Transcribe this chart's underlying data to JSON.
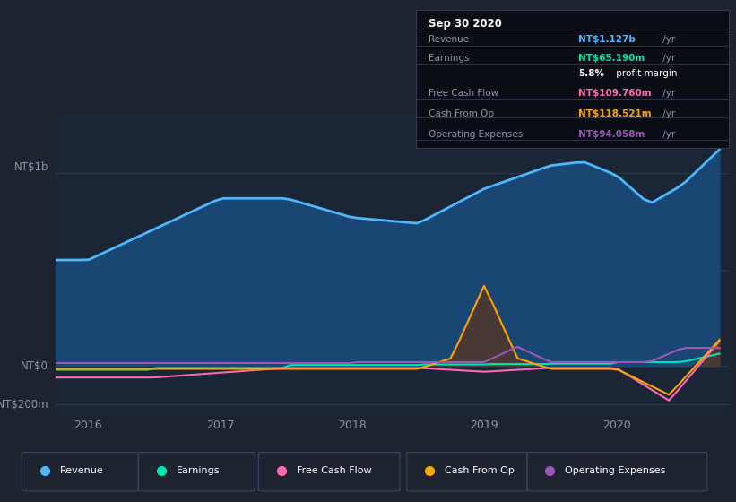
{
  "bg_color": "#1e2330",
  "plot_bg_color": "#1a2535",
  "title": "Sep 30 2020",
  "ylabel_top": "NT$1b",
  "ylabel_zero": "NT$0",
  "ylabel_bottom": "-NT$200m",
  "x_labels": [
    "2016",
    "2017",
    "2018",
    "2019",
    "2020"
  ],
  "info_box_title": "Sep 30 2020",
  "info_rows": [
    {
      "label": "Revenue",
      "value": "NT$1.127b",
      "suffix": " /yr",
      "value_color": "#4db8ff"
    },
    {
      "label": "Earnings",
      "value": "NT$65.190m",
      "suffix": " /yr",
      "value_color": "#00e5b4"
    },
    {
      "label": "",
      "value": "5.8%",
      "suffix": " profit margin",
      "value_color": "#ffffff"
    },
    {
      "label": "Free Cash Flow",
      "value": "NT$109.760m",
      "suffix": " /yr",
      "value_color": "#ff69b4"
    },
    {
      "label": "Cash From Op",
      "value": "NT$118.521m",
      "suffix": " /yr",
      "value_color": "#ffa500"
    },
    {
      "label": "Operating Expenses",
      "value": "NT$94.058m",
      "suffix": " /yr",
      "value_color": "#9b59b6"
    }
  ],
  "legend": [
    {
      "label": "Revenue",
      "color": "#4db8ff"
    },
    {
      "label": "Earnings",
      "color": "#00e5b4"
    },
    {
      "label": "Free Cash Flow",
      "color": "#ff69b4"
    },
    {
      "label": "Cash From Op",
      "color": "#ffa500"
    },
    {
      "label": "Operating Expenses",
      "color": "#9b59b6"
    }
  ],
  "revenue_color": "#4db8ff",
  "revenue_fill_color": "#1a4a7a",
  "earnings_color": "#00e5b4",
  "fcf_color": "#ff69b4",
  "cashfromop_color": "#ffa500",
  "cashfromop_fill_color": "#5a3520",
  "opex_color": "#9b59b6",
  "grid_color": "#2a3a50",
  "axis_label_color": "#8899aa",
  "box_bg_color": "#0a0d14",
  "box_border_color": "#333a50",
  "legend_border_color": "#3a4560",
  "ylim_min": -250000000,
  "ylim_max": 1300000000,
  "xmin": 2015.75,
  "xmax": 2020.85
}
